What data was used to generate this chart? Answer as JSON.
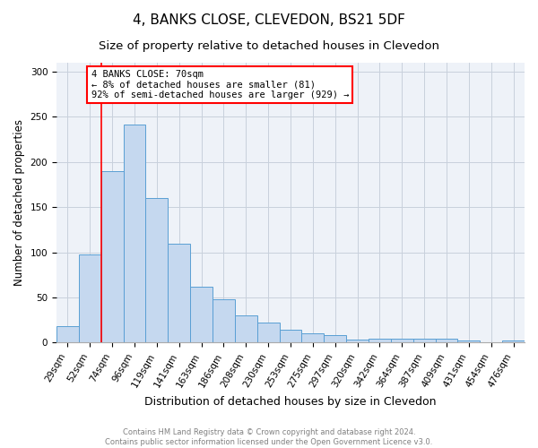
{
  "title": "4, BANKS CLOSE, CLEVEDON, BS21 5DF",
  "subtitle": "Size of property relative to detached houses in Clevedon",
  "xlabel": "Distribution of detached houses by size in Clevedon",
  "ylabel": "Number of detached properties",
  "categories": [
    "29sqm",
    "52sqm",
    "74sqm",
    "96sqm",
    "119sqm",
    "141sqm",
    "163sqm",
    "186sqm",
    "208sqm",
    "230sqm",
    "253sqm",
    "275sqm",
    "297sqm",
    "320sqm",
    "342sqm",
    "364sqm",
    "387sqm",
    "409sqm",
    "431sqm",
    "454sqm",
    "476sqm"
  ],
  "values": [
    18,
    98,
    190,
    242,
    160,
    110,
    62,
    48,
    30,
    22,
    14,
    10,
    8,
    3,
    4,
    4,
    4,
    4,
    2,
    0,
    2
  ],
  "bar_color": "#c5d8ef",
  "bar_edge_color": "#5a9fd4",
  "annotation_text": "4 BANKS CLOSE: 70sqm\n← 8% of detached houses are smaller (81)\n92% of semi-detached houses are larger (929) →",
  "annotation_box_color": "white",
  "annotation_box_edge_color": "red",
  "footer_line1": "Contains HM Land Registry data © Crown copyright and database right 2024.",
  "footer_line2": "Contains public sector information licensed under the Open Government Licence v3.0.",
  "ylim": [
    0,
    310
  ],
  "yticks": [
    0,
    50,
    100,
    150,
    200,
    250,
    300
  ],
  "background_color": "#eef2f8",
  "grid_color": "#c8d0dc",
  "title_fontsize": 11,
  "subtitle_fontsize": 9.5,
  "xlabel_fontsize": 9,
  "ylabel_fontsize": 8.5,
  "tick_fontsize": 7.5,
  "annotation_fontsize": 7.5
}
